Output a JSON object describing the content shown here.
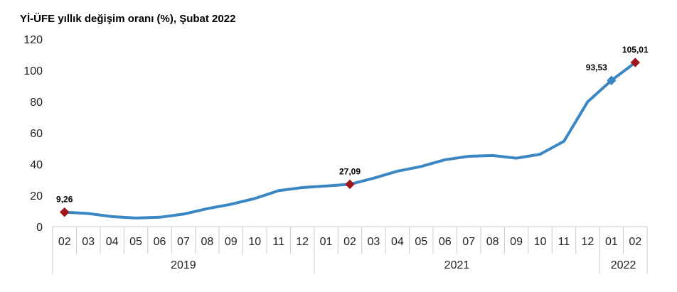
{
  "chart_data": {
    "type": "line",
    "title": "Yİ-ÜFE yıllık değişim oranı (%), Şubat 2022",
    "xlabel": "",
    "ylabel": "",
    "ylim": [
      0,
      120
    ],
    "yticks": [
      0,
      20,
      40,
      60,
      80,
      100,
      120
    ],
    "grid": false,
    "legend": "none",
    "categories": [
      "02",
      "03",
      "04",
      "05",
      "06",
      "07",
      "08",
      "09",
      "10",
      "11",
      "12",
      "01",
      "02",
      "03",
      "04",
      "05",
      "06",
      "07",
      "08",
      "09",
      "10",
      "11",
      "12",
      "01",
      "02"
    ],
    "year_groups": [
      {
        "label": "2019",
        "start": 0,
        "end": 10
      },
      {
        "label": "2021",
        "start": 11,
        "end": 22
      },
      {
        "label": "2022",
        "start": 23,
        "end": 24
      }
    ],
    "series": [
      {
        "values": [
          9.26,
          8.4,
          6.4,
          5.5,
          6.0,
          8.0,
          11.5,
          14.3,
          18.0,
          23.0,
          25.0,
          26.0,
          27.09,
          31.0,
          35.5,
          38.5,
          42.8,
          45.0,
          45.5,
          43.8,
          46.3,
          54.6,
          79.9,
          93.53,
          105.01
        ],
        "color": "#3b87c4"
      }
    ],
    "annotations": [
      {
        "index": 0,
        "label": "9,26",
        "marker": "diamond",
        "color": "#a0161b"
      },
      {
        "index": 12,
        "label": "27,09",
        "marker": "diamond",
        "color": "#a0161b"
      },
      {
        "index": 23,
        "label": "93,53",
        "marker": "diamond",
        "color": "#3b87c4"
      },
      {
        "index": 24,
        "label": "105,01",
        "marker": "diamond",
        "color": "#a0161b"
      }
    ]
  }
}
